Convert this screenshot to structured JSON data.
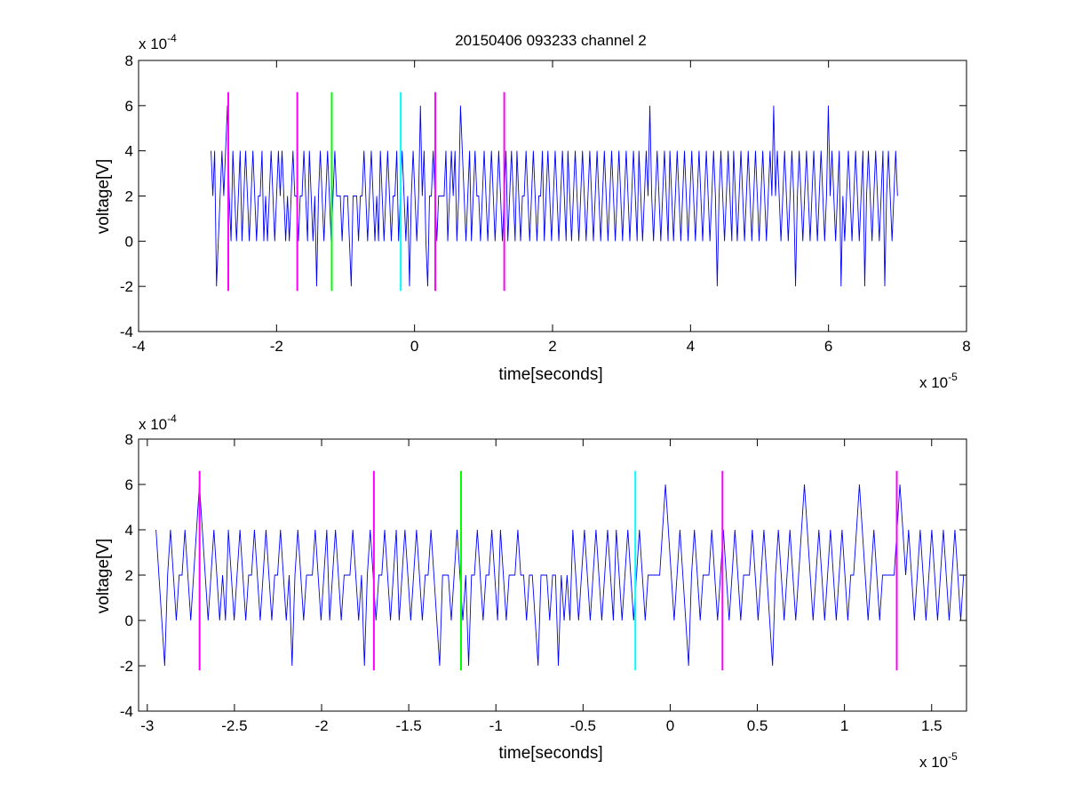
{
  "figure": {
    "title": "20150406 093233 channel 2"
  },
  "chart_data": [
    {
      "type": "line",
      "title": "20150406 093233 channel 2",
      "xlabel": "time[seconds]",
      "ylabel": "voltage[V]",
      "x_multiplier": "x 10",
      "x_exponent": "-5",
      "y_multiplier": "x 10",
      "y_exponent": "-4",
      "xlim": [
        -4,
        8
      ],
      "ylim": [
        -4,
        8
      ],
      "xticks": [
        -4,
        -2,
        0,
        2,
        4,
        6,
        8
      ],
      "xtick_labels": [
        "-4",
        "-2",
        "0",
        "2",
        "4",
        "6",
        "8"
      ],
      "yticks": [
        -4,
        -2,
        0,
        2,
        4,
        6,
        8
      ],
      "ytick_labels": [
        "-4",
        "-2",
        "0",
        "2",
        "4",
        "6",
        "8"
      ],
      "grid": false,
      "series": [
        {
          "color": "#0000ff",
          "x_start": -2.95,
          "x_end": 7.0,
          "levels": [
            -2,
            0,
            2,
            4,
            6
          ],
          "values": [
            4,
            2,
            4,
            -2,
            0,
            2,
            4,
            2,
            4,
            6,
            2,
            0,
            4,
            2,
            0,
            2,
            4,
            0,
            2,
            4,
            2,
            0,
            2,
            4,
            2,
            0,
            2,
            2,
            4,
            0,
            2,
            0,
            2,
            4,
            2,
            0,
            2,
            4,
            2,
            4,
            2,
            0,
            2,
            0,
            2,
            4,
            2,
            2,
            0,
            2,
            2,
            4,
            2,
            0,
            4,
            2,
            0,
            2,
            -2,
            2,
            4,
            2,
            0,
            2,
            4,
            2,
            0,
            2,
            4,
            2,
            2,
            2,
            0,
            2,
            2,
            2,
            0,
            -2,
            2,
            2,
            2,
            0,
            2,
            2,
            4,
            2,
            0,
            2,
            4,
            2,
            0,
            2,
            0,
            4,
            2,
            0,
            2,
            4,
            2,
            0,
            2,
            2,
            4,
            0,
            2,
            4,
            2,
            0,
            2,
            -2,
            2,
            4,
            2,
            0,
            2,
            6,
            2,
            4,
            0,
            -2,
            2,
            2,
            4,
            2,
            0,
            2,
            2,
            2,
            2,
            4,
            0,
            2,
            4,
            2,
            4,
            0,
            2,
            6,
            4,
            2,
            0,
            2,
            4,
            0,
            2,
            4,
            2,
            2,
            0,
            2,
            4,
            2,
            0,
            2,
            4,
            2,
            0,
            2,
            4,
            2,
            0,
            2,
            4,
            0,
            2,
            4,
            2,
            0,
            4,
            2,
            0,
            2,
            2,
            4,
            2,
            0,
            2,
            4,
            2,
            0,
            2,
            2,
            4,
            0,
            2,
            4,
            2,
            0,
            2,
            4,
            2,
            0,
            2,
            4,
            2,
            0,
            4,
            2,
            0,
            2,
            4,
            2,
            0,
            2,
            4,
            2,
            0,
            2,
            4,
            2,
            0,
            2,
            4,
            2,
            0,
            2,
            4,
            2,
            0,
            2,
            4,
            2,
            0,
            2,
            4,
            2,
            0,
            2,
            4,
            2,
            0,
            2,
            4,
            2,
            0,
            4,
            2,
            0,
            2,
            4,
            2,
            6,
            2,
            0,
            2,
            4,
            2,
            0,
            2,
            4,
            2,
            0,
            4,
            2,
            0,
            2,
            4,
            2,
            0,
            2,
            4,
            2,
            0,
            2,
            4,
            2,
            0,
            2,
            4,
            2,
            0,
            2,
            4,
            2,
            0,
            2,
            4,
            2,
            -2,
            2,
            4,
            2,
            0,
            2,
            4,
            2,
            0,
            4,
            2,
            0,
            2,
            4,
            2,
            0,
            2,
            4,
            2,
            0,
            2,
            4,
            2,
            0,
            2,
            4,
            2,
            0,
            2,
            4,
            2,
            6,
            2,
            4,
            2,
            0,
            2,
            4,
            2,
            0,
            2,
            4,
            2,
            -2,
            2,
            4,
            2,
            0,
            2,
            4,
            2,
            0,
            2,
            4,
            2,
            0,
            2,
            4,
            2,
            0,
            2,
            6,
            2,
            4,
            2,
            0,
            2,
            4,
            -2,
            2,
            0,
            2,
            4,
            2,
            0,
            2,
            4,
            2,
            0,
            2,
            4,
            -2,
            2,
            4,
            2,
            0,
            2,
            4,
            2,
            0,
            2,
            4,
            -2,
            2,
            4,
            2,
            0,
            2,
            4,
            2
          ]
        }
      ],
      "markers": [
        {
          "x": -2.7,
          "color": "#ff00ff",
          "y_range": [
            -2.2,
            6.6
          ]
        },
        {
          "x": -1.7,
          "color": "#ff00ff",
          "y_range": [
            -2.2,
            6.6
          ]
        },
        {
          "x": -1.2,
          "color": "#00ff00",
          "y_range": [
            -2.2,
            6.6
          ]
        },
        {
          "x": -0.2,
          "color": "#00ffff",
          "y_range": [
            -2.2,
            6.6
          ]
        },
        {
          "x": 0.3,
          "color": "#ff00ff",
          "y_range": [
            -2.2,
            6.6
          ]
        },
        {
          "x": 1.3,
          "color": "#ff00ff",
          "y_range": [
            -2.2,
            6.6
          ]
        }
      ]
    },
    {
      "type": "line",
      "title": "",
      "xlabel": "time[seconds]",
      "ylabel": "voltage[V]",
      "x_multiplier": "x 10",
      "x_exponent": "-5",
      "y_multiplier": "x 10",
      "y_exponent": "-4",
      "xlim": [
        -3.05,
        1.7
      ],
      "ylim": [
        -4,
        8
      ],
      "xticks": [
        -3,
        -2.5,
        -2,
        -1.5,
        -1,
        -0.5,
        0,
        0.5,
        1,
        1.5
      ],
      "xtick_labels": [
        "-3",
        "-2.5",
        "-2",
        "-1.5",
        "-1",
        "-0.5",
        "0",
        "0.5",
        "1",
        "1.5"
      ],
      "yticks": [
        -4,
        -2,
        0,
        2,
        4,
        6,
        8
      ],
      "ytick_labels": [
        "-4",
        "-2",
        "0",
        "2",
        "4",
        "6",
        "8"
      ],
      "grid": false,
      "series": [
        {
          "color": "#0000ff",
          "x_start": -2.95,
          "x_end": 1.7,
          "levels": [
            -2,
            0,
            2,
            4,
            6
          ],
          "values": [
            4,
            2,
            0,
            -2,
            2,
            4,
            2,
            0,
            2,
            2,
            4,
            2,
            0,
            2,
            4,
            6,
            4,
            2,
            0,
            2,
            4,
            2,
            0,
            2,
            0,
            4,
            2,
            0,
            2,
            4,
            2,
            0,
            2,
            2,
            4,
            2,
            0,
            2,
            4,
            2,
            0,
            2,
            2,
            4,
            2,
            0,
            2,
            -2,
            2,
            4,
            2,
            0,
            2,
            2,
            2,
            4,
            2,
            0,
            2,
            4,
            0,
            2,
            4,
            2,
            0,
            2,
            2,
            2,
            4,
            2,
            0,
            2,
            -2,
            2,
            4,
            2,
            0,
            2,
            2,
            4,
            2,
            0,
            2,
            4,
            0,
            2,
            4,
            2,
            0,
            2,
            4,
            2,
            0,
            2,
            2,
            4,
            2,
            0,
            -2,
            2,
            2,
            2,
            0,
            2,
            4,
            2,
            0,
            2,
            -2,
            2,
            2,
            4,
            2,
            0,
            2,
            2,
            4,
            2,
            0,
            4,
            2,
            0,
            2,
            2,
            2,
            4,
            2,
            2,
            0,
            2,
            2,
            0,
            -2,
            2,
            2,
            2,
            0,
            2,
            2,
            -2,
            2,
            0,
            2,
            0,
            4,
            2,
            0,
            2,
            4,
            2,
            0,
            2,
            4,
            2,
            0,
            2,
            4,
            2,
            0,
            4,
            2,
            0,
            2,
            4,
            2,
            0,
            2,
            4,
            2,
            0,
            2,
            2,
            2,
            2,
            2,
            4,
            6,
            4,
            2,
            0,
            2,
            4,
            2,
            0,
            -2,
            2,
            4,
            2,
            0,
            2,
            2,
            2,
            4,
            2,
            0,
            2,
            4,
            2,
            0,
            2,
            4,
            2,
            0,
            2,
            2,
            2,
            4,
            2,
            0,
            2,
            4,
            2,
            0,
            -2,
            2,
            4,
            2,
            0,
            2,
            4,
            2,
            0,
            2,
            4,
            6,
            4,
            2,
            0,
            2,
            4,
            2,
            0,
            2,
            4,
            2,
            0,
            2,
            4,
            2,
            0,
            2,
            2,
            4,
            6,
            4,
            2,
            0,
            2,
            4,
            2,
            0,
            2,
            2,
            2,
            2,
            2,
            4,
            6,
            4,
            2,
            4,
            2,
            0,
            2,
            4,
            2,
            0,
            2,
            4,
            2,
            0,
            2,
            4,
            2,
            0,
            2,
            4,
            2,
            0,
            2,
            2
          ]
        }
      ],
      "markers": [
        {
          "x": -2.7,
          "color": "#ff00ff",
          "y_range": [
            -2.2,
            6.6
          ]
        },
        {
          "x": -1.7,
          "color": "#ff00ff",
          "y_range": [
            -2.2,
            6.6
          ]
        },
        {
          "x": -1.2,
          "color": "#00ff00",
          "y_range": [
            -2.2,
            6.6
          ]
        },
        {
          "x": -0.2,
          "color": "#00ffff",
          "y_range": [
            -2.2,
            6.6
          ]
        },
        {
          "x": 0.3,
          "color": "#ff00ff",
          "y_range": [
            -2.2,
            6.6
          ]
        },
        {
          "x": 1.3,
          "color": "#ff00ff",
          "y_range": [
            -2.2,
            6.6
          ]
        }
      ]
    }
  ]
}
